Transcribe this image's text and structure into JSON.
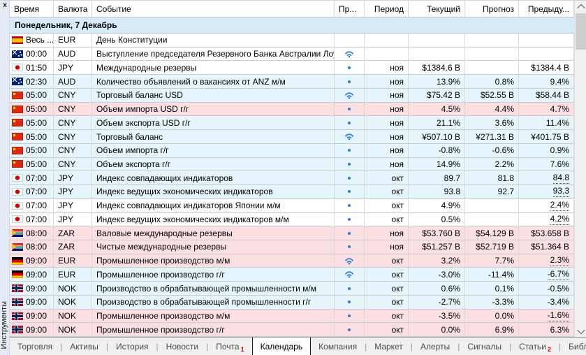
{
  "window": {
    "close_glyph": "x",
    "dock_label": "Инструменты"
  },
  "colors": {
    "row_blue": "#e6f4fb",
    "row_pink": "#fcdfe3",
    "row_white": "#ffffff",
    "group_bg": "#d6ebf5",
    "importance_blue": "#2f7bdd",
    "badge_red": "#e00000"
  },
  "calendar": {
    "columns": [
      "Время",
      "Валюта",
      "Событие",
      "Пр...",
      "Период",
      "Текущий",
      "Прогноз",
      "Предыду..."
    ],
    "group_header": "Понедельник, 7 Декабрь",
    "rows": [
      {
        "flag": "spain",
        "time": "Весь ...",
        "currency": "EUR",
        "event": "День Конституции",
        "importance": "none",
        "period": "",
        "actual": "",
        "forecast": "",
        "previous": "",
        "bg": "white",
        "prev_revised": false
      },
      {
        "flag": "australia",
        "time": "00:00",
        "currency": "AUD",
        "event": "Выступление председателя Резервного Банка Австралии Лоу",
        "importance": "high",
        "period": "",
        "actual": "",
        "forecast": "",
        "previous": "",
        "bg": "white",
        "prev_revised": false
      },
      {
        "flag": "japan",
        "time": "01:50",
        "currency": "JPY",
        "event": "Международные резервы",
        "importance": "low",
        "period": "ноя",
        "actual": "$1384.6 B",
        "forecast": "",
        "previous": "$1384.4 B",
        "bg": "white",
        "prev_revised": false
      },
      {
        "flag": "australia",
        "time": "02:30",
        "currency": "AUD",
        "event": "Количество объявлений о вакансиях от ANZ м/м",
        "importance": "low",
        "period": "ноя",
        "actual": "13.9%",
        "forecast": "0.8%",
        "previous": "9.4%",
        "bg": "blue",
        "prev_revised": false
      },
      {
        "flag": "china",
        "time": "05:00",
        "currency": "CNY",
        "event": "Торговый баланс USD",
        "importance": "high",
        "period": "ноя",
        "actual": "$75.42 B",
        "forecast": "$52.55 B",
        "previous": "$58.44 B",
        "bg": "blue",
        "prev_revised": false
      },
      {
        "flag": "china",
        "time": "05:00",
        "currency": "CNY",
        "event": "Объем импорта USD г/г",
        "importance": "low",
        "period": "ноя",
        "actual": "4.5%",
        "forecast": "4.4%",
        "previous": "4.7%",
        "bg": "pink",
        "prev_revised": false
      },
      {
        "flag": "china",
        "time": "05:00",
        "currency": "CNY",
        "event": "Объем экспорта USD г/г",
        "importance": "low",
        "period": "ноя",
        "actual": "21.1%",
        "forecast": "3.6%",
        "previous": "11.4%",
        "bg": "blue",
        "prev_revised": false
      },
      {
        "flag": "china",
        "time": "05:00",
        "currency": "CNY",
        "event": "Торговый баланс",
        "importance": "high",
        "period": "ноя",
        "actual": "¥507.10 B",
        "forecast": "¥271.31 B",
        "previous": "¥401.75 B",
        "bg": "blue",
        "prev_revised": false
      },
      {
        "flag": "china",
        "time": "05:00",
        "currency": "CNY",
        "event": "Объем импорта г/г",
        "importance": "low",
        "period": "ноя",
        "actual": "-0.8%",
        "forecast": "-0.6%",
        "previous": "0.9%",
        "bg": "blue",
        "prev_revised": false
      },
      {
        "flag": "china",
        "time": "05:00",
        "currency": "CNY",
        "event": "Объем экспорта г/г",
        "importance": "low",
        "period": "ноя",
        "actual": "14.9%",
        "forecast": "2.2%",
        "previous": "7.6%",
        "bg": "blue",
        "prev_revised": false
      },
      {
        "flag": "japan",
        "time": "07:00",
        "currency": "JPY",
        "event": "Индекс совпадающих индикаторов",
        "importance": "low",
        "period": "окт",
        "actual": "89.7",
        "forecast": "81.8",
        "previous": "84.8",
        "bg": "blue",
        "prev_revised": true
      },
      {
        "flag": "japan",
        "time": "07:00",
        "currency": "JPY",
        "event": "Индекс ведущих экономических индикаторов",
        "importance": "low",
        "period": "окт",
        "actual": "93.8",
        "forecast": "92.7",
        "previous": "93.3",
        "bg": "blue",
        "prev_revised": true
      },
      {
        "flag": "japan",
        "time": "07:00",
        "currency": "JPY",
        "event": "Индекс совпадающих индикаторов Японии м/м",
        "importance": "low",
        "period": "окт",
        "actual": "4.9%",
        "forecast": "",
        "previous": "2.4%",
        "bg": "white",
        "prev_revised": true
      },
      {
        "flag": "japan",
        "time": "07:00",
        "currency": "JPY",
        "event": "Индекс ведущих экономических индикаторов м/м",
        "importance": "low",
        "period": "окт",
        "actual": "0.5%",
        "forecast": "",
        "previous": "4.2%",
        "bg": "white",
        "prev_revised": true
      },
      {
        "flag": "south-africa",
        "time": "08:00",
        "currency": "ZAR",
        "event": "Валовые международные резервы",
        "importance": "low",
        "period": "ноя",
        "actual": "$53.760 B",
        "forecast": "$54.129 B",
        "previous": "$53.658 B",
        "bg": "pink",
        "prev_revised": false
      },
      {
        "flag": "south-africa",
        "time": "08:00",
        "currency": "ZAR",
        "event": "Чистые международные резервы",
        "importance": "low",
        "period": "ноя",
        "actual": "$51.257 B",
        "forecast": "$52.719 B",
        "previous": "$51.364 B",
        "bg": "pink",
        "prev_revised": false
      },
      {
        "flag": "germany",
        "time": "09:00",
        "currency": "EUR",
        "event": "Промышленное производство м/м",
        "importance": "high",
        "period": "окт",
        "actual": "3.2%",
        "forecast": "7.7%",
        "previous": "2.3%",
        "bg": "pink",
        "prev_revised": true
      },
      {
        "flag": "germany",
        "time": "09:00",
        "currency": "EUR",
        "event": "Промышленное производство г/г",
        "importance": "high",
        "period": "окт",
        "actual": "-3.0%",
        "forecast": "-11.4%",
        "previous": "-6.7%",
        "bg": "blue",
        "prev_revised": true
      },
      {
        "flag": "norway",
        "time": "09:00",
        "currency": "NOK",
        "event": "Производство в обрабатывающей промышленности м/м",
        "importance": "low",
        "period": "окт",
        "actual": "0.6%",
        "forecast": "0.1%",
        "previous": "-0.5%",
        "bg": "blue",
        "prev_revised": false
      },
      {
        "flag": "norway",
        "time": "09:00",
        "currency": "NOK",
        "event": "Производство в обрабатывающей промышленности г/г",
        "importance": "low",
        "period": "окт",
        "actual": "-2.7%",
        "forecast": "-3.3%",
        "previous": "-3.4%",
        "bg": "blue",
        "prev_revised": false
      },
      {
        "flag": "norway",
        "time": "09:00",
        "currency": "NOK",
        "event": "Промышленное производство м/м",
        "importance": "low",
        "period": "окт",
        "actual": "-3.5%",
        "forecast": "0.0%",
        "previous": "-1.6%",
        "bg": "pink",
        "prev_revised": true
      },
      {
        "flag": "norway",
        "time": "09:00",
        "currency": "NOK",
        "event": "Промышленное производство г/г",
        "importance": "low",
        "period": "окт",
        "actual": "0.0%",
        "forecast": "6.9%",
        "previous": "6.3%",
        "bg": "pink",
        "prev_revised": false
      }
    ]
  },
  "tabs": [
    {
      "label": "Торговля",
      "badge": "",
      "active": false
    },
    {
      "label": "Активы",
      "badge": "",
      "active": false
    },
    {
      "label": "История",
      "badge": "",
      "active": false
    },
    {
      "label": "Новости",
      "badge": "",
      "active": false
    },
    {
      "label": "Почта",
      "badge": "1",
      "active": false
    },
    {
      "label": "Календарь",
      "badge": "",
      "active": true
    },
    {
      "label": "Компания",
      "badge": "",
      "active": false
    },
    {
      "label": "Маркет",
      "badge": "",
      "active": false
    },
    {
      "label": "Алерты",
      "badge": "",
      "active": false
    },
    {
      "label": "Сигналы",
      "badge": "",
      "active": false
    },
    {
      "label": "Статьи",
      "badge": "2",
      "active": false
    },
    {
      "label": "Библиотека",
      "badge": "",
      "active": false
    }
  ]
}
